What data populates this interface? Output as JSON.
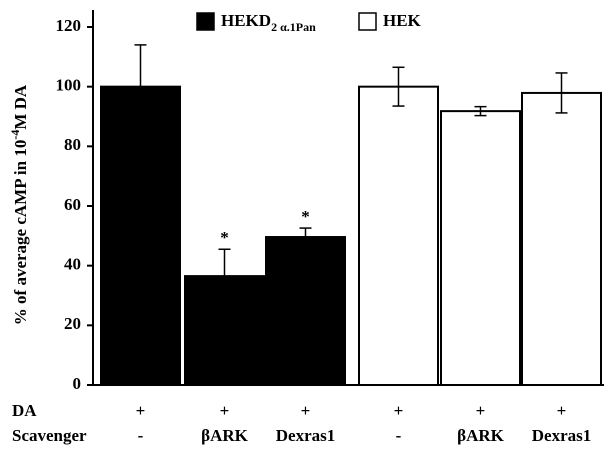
{
  "chart_data": {
    "type": "bar",
    "ylabel": {
      "text": "% of average cAMP in 10",
      "sup": "-4",
      "after": "M DA"
    },
    "category_rows": [
      {
        "name": "DA",
        "labels": [
          "+",
          "+",
          "+",
          "+",
          "+",
          "+"
        ]
      },
      {
        "name": "Scavenger",
        "labels": [
          "-",
          "βARK",
          "Dexras1",
          "-",
          "βARK",
          "Dexras1"
        ]
      }
    ],
    "series": [
      {
        "name": "HEKD",
        "name_subscript": "2 α.1Pan",
        "color": "#000000",
        "values": [
          100,
          36.5,
          49.6,
          null,
          null,
          null
        ],
        "errors": [
          14,
          9,
          3,
          null,
          null,
          null
        ]
      },
      {
        "name": "HEK",
        "color": "#ffffff",
        "values": [
          null,
          null,
          null,
          100,
          91.8,
          97.9
        ],
        "errors": [
          null,
          null,
          null,
          6.5,
          1.5,
          6.7
        ]
      }
    ],
    "significance": [
      null,
      "*",
      "*",
      null,
      null,
      null
    ],
    "ylim": [
      0,
      120
    ],
    "yticks": [
      0,
      20,
      40,
      60,
      80,
      100,
      120
    ],
    "grid": false
  }
}
